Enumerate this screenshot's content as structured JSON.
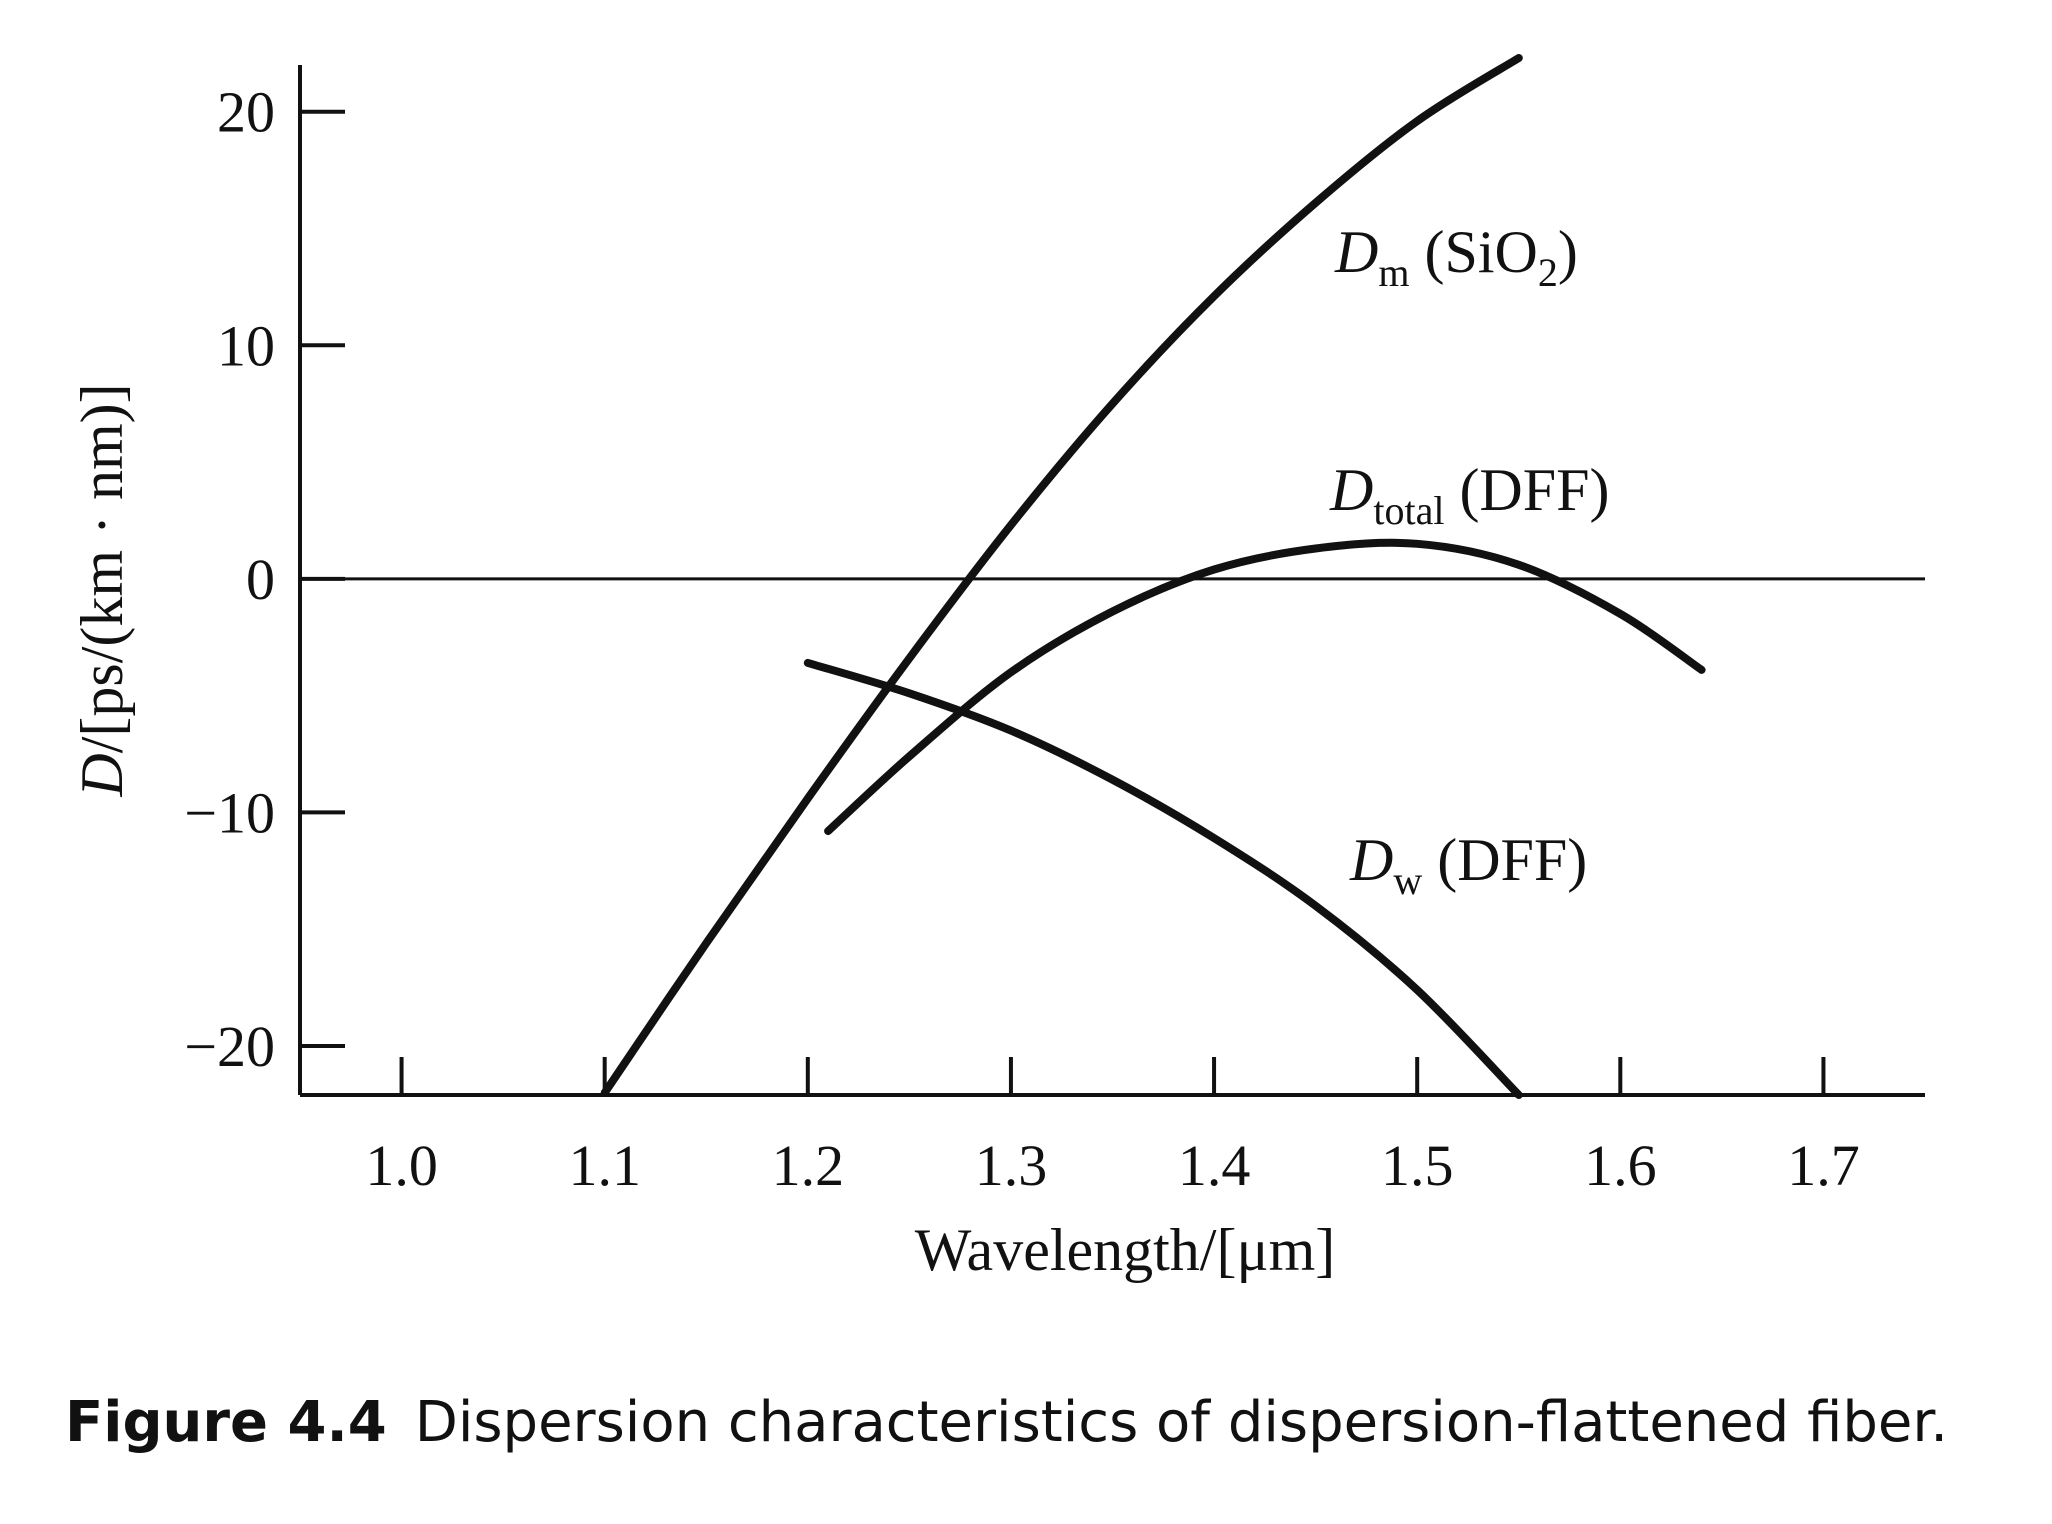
{
  "chart_data": {
    "type": "line",
    "xlabel": "Wavelength/[μm]",
    "ylabel": "D/[ps/(km · nm)]",
    "xlim": [
      0.95,
      1.75
    ],
    "ylim": [
      -22.1,
      22
    ],
    "x_ticks": [
      "1.0",
      "1.1",
      "1.2",
      "1.3",
      "1.4",
      "1.5",
      "1.6",
      "1.7"
    ],
    "y_ticks": [
      "20",
      "10",
      "0",
      "−10",
      "−20"
    ],
    "x_tick_values": [
      1.0,
      1.1,
      1.2,
      1.3,
      1.4,
      1.5,
      1.6,
      1.7
    ],
    "y_tick_values": [
      20,
      10,
      0,
      -10,
      -20
    ],
    "zero_line": true,
    "grid": false,
    "series": [
      {
        "label_main": "D",
        "label_sub": "m",
        "label_rest": " (SiO",
        "label_sub2": "2",
        "label_end": ")",
        "x": [
          1.1,
          1.15,
          1.2,
          1.25,
          1.3,
          1.35,
          1.4,
          1.45,
          1.5,
          1.55
        ],
        "y": [
          -22.0,
          -15.6,
          -9.4,
          -3.4,
          2.3,
          7.5,
          12.1,
          16.1,
          19.6,
          22.3
        ]
      },
      {
        "label_main": "D",
        "label_sub": "total",
        "label_rest": " (DFF)",
        "label_sub2": "",
        "label_end": "",
        "x": [
          1.21,
          1.25,
          1.3,
          1.35,
          1.4,
          1.45,
          1.5,
          1.55,
          1.6,
          1.64
        ],
        "y": [
          -10.8,
          -7.6,
          -4.0,
          -1.4,
          0.4,
          1.3,
          1.5,
          0.6,
          -1.5,
          -3.9
        ]
      },
      {
        "label_main": "D",
        "label_sub": "w",
        "label_rest": " (DFF)",
        "label_sub2": "",
        "label_end": "",
        "x": [
          1.2,
          1.25,
          1.3,
          1.35,
          1.4,
          1.45,
          1.5,
          1.55
        ],
        "y": [
          -3.6,
          -4.9,
          -6.5,
          -8.6,
          -11.1,
          -14.0,
          -17.6,
          -22.1
        ]
      }
    ]
  },
  "caption": {
    "number": "Figure 4.4",
    "text": "Dispersion characteristics of dispersion-flattened fiber."
  }
}
